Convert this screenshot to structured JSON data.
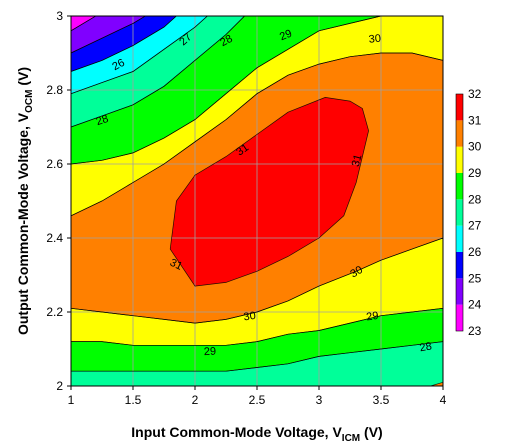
{
  "chart_data": {
    "type": "heatmap",
    "subtype": "filled-contour",
    "x_axis": {
      "label": "Input Common-Mode Voltage, V",
      "label_subscript": "ICM",
      "label_suffix": " (V)",
      "range": [
        1,
        4
      ],
      "ticks": [
        "1",
        "1.5",
        "2",
        "2.5",
        "3",
        "3.5",
        "4"
      ]
    },
    "y_axis": {
      "label": "Output Common-Mode Voltage, V",
      "label_subscript": "OCM",
      "label_suffix": " (V)",
      "range": [
        2,
        3
      ],
      "ticks": [
        "2",
        "2.2",
        "2.4",
        "2.6",
        "2.8",
        "3"
      ]
    },
    "grid": true,
    "legend_position": "right",
    "levels": [
      {
        "min": 23,
        "max": 24,
        "color": "#ff00ff"
      },
      {
        "min": 24,
        "max": 25,
        "color": "#8000ff"
      },
      {
        "min": 25,
        "max": 26,
        "color": "#0000ff"
      },
      {
        "min": 26,
        "max": 27,
        "color": "#00ffff"
      },
      {
        "min": 27,
        "max": 28,
        "color": "#00ff99"
      },
      {
        "min": 28,
        "max": 29,
        "color": "#00ff00"
      },
      {
        "min": 29,
        "max": 30,
        "color": "#ffff00"
      },
      {
        "min": 30,
        "max": 31,
        "color": "#ff8000"
      },
      {
        "min": 31,
        "max": 32,
        "color": "#ff0000"
      }
    ],
    "colorbar_ticks": [
      "23",
      "24",
      "25",
      "26",
      "27",
      "28",
      "29",
      "30",
      "31",
      "32"
    ],
    "regions": [
      {
        "level": 30,
        "points": [
          [
            1,
            2.46
          ],
          [
            1.25,
            2.5
          ],
          [
            1.5,
            2.55
          ],
          [
            1.75,
            2.6
          ],
          [
            2,
            2.66
          ],
          [
            2.25,
            2.72
          ],
          [
            2.5,
            2.79
          ],
          [
            2.75,
            2.84
          ],
          [
            3,
            2.87
          ],
          [
            3.25,
            2.89
          ],
          [
            3.5,
            2.9
          ],
          [
            3.75,
            2.9
          ],
          [
            4,
            2.88
          ],
          [
            4,
            2.4
          ],
          [
            3.75,
            2.37
          ],
          [
            3.5,
            2.34
          ],
          [
            3.3,
            2.31
          ],
          [
            3,
            2.27
          ],
          [
            2.75,
            2.23
          ],
          [
            2.5,
            2.2
          ],
          [
            2.25,
            2.18
          ],
          [
            2,
            2.17
          ],
          [
            1.75,
            2.18
          ],
          [
            1.5,
            2.19
          ],
          [
            1.25,
            2.2
          ],
          [
            1,
            2.21
          ]
        ]
      },
      {
        "level": 29,
        "points": [
          [
            1,
            2.21
          ],
          [
            1.25,
            2.2
          ],
          [
            1.5,
            2.19
          ],
          [
            1.75,
            2.18
          ],
          [
            2,
            2.17
          ],
          [
            2.25,
            2.18
          ],
          [
            2.5,
            2.2
          ],
          [
            2.75,
            2.23
          ],
          [
            3,
            2.27
          ],
          [
            3.3,
            2.31
          ],
          [
            3.5,
            2.34
          ],
          [
            3.75,
            2.37
          ],
          [
            4,
            2.4
          ],
          [
            4,
            2.21
          ],
          [
            3.75,
            2.2
          ],
          [
            3.5,
            2.19
          ],
          [
            3.25,
            2.17
          ],
          [
            3,
            2.15
          ],
          [
            2.75,
            2.14
          ],
          [
            2.5,
            2.12
          ],
          [
            2.25,
            2.11
          ],
          [
            2,
            2.11
          ],
          [
            1.75,
            2.11
          ],
          [
            1.5,
            2.11
          ],
          [
            1.25,
            2.12
          ],
          [
            1,
            2.12
          ]
        ]
      },
      {
        "level": 28,
        "points": [
          [
            1,
            2.12
          ],
          [
            1.25,
            2.12
          ],
          [
            1.5,
            2.11
          ],
          [
            1.75,
            2.11
          ],
          [
            2,
            2.11
          ],
          [
            2.25,
            2.11
          ],
          [
            2.5,
            2.12
          ],
          [
            2.75,
            2.14
          ],
          [
            3,
            2.15
          ],
          [
            3.25,
            2.17
          ],
          [
            3.5,
            2.19
          ],
          [
            3.75,
            2.2
          ],
          [
            4,
            2.21
          ],
          [
            4,
            2.12
          ],
          [
            3.75,
            2.11
          ],
          [
            3.5,
            2.1
          ],
          [
            3.25,
            2.09
          ],
          [
            3,
            2.08
          ],
          [
            2.75,
            2.06
          ],
          [
            2.5,
            2.05
          ],
          [
            2.25,
            2.04
          ],
          [
            2,
            2.04
          ],
          [
            1.75,
            2.04
          ],
          [
            1.5,
            2.04
          ],
          [
            1.25,
            2.04
          ],
          [
            1,
            2.04
          ]
        ]
      },
      {
        "level": 27,
        "points": [
          [
            1,
            2.04
          ],
          [
            1.25,
            2.04
          ],
          [
            1.5,
            2.04
          ],
          [
            1.75,
            2.04
          ],
          [
            2,
            2.04
          ],
          [
            2.25,
            2.04
          ],
          [
            2.5,
            2.05
          ],
          [
            2.75,
            2.06
          ],
          [
            3,
            2.08
          ],
          [
            3.25,
            2.09
          ],
          [
            3.5,
            2.1
          ],
          [
            3.75,
            2.11
          ],
          [
            4,
            2.12
          ],
          [
            4,
            2.01
          ],
          [
            3.9,
            2
          ],
          [
            1,
            2
          ]
        ]
      },
      {
        "level": 29,
        "points": [
          [
            1,
            2.46
          ],
          [
            1,
            2.6
          ],
          [
            1.25,
            2.61
          ],
          [
            1.5,
            2.63
          ],
          [
            1.75,
            2.67
          ],
          [
            2,
            2.72
          ],
          [
            2.25,
            2.79
          ],
          [
            2.5,
            2.86
          ],
          [
            2.75,
            2.91
          ],
          [
            3,
            2.96
          ],
          [
            3.25,
            2.98
          ],
          [
            3.5,
            3
          ],
          [
            4,
            3
          ],
          [
            4,
            2.88
          ],
          [
            3.75,
            2.9
          ],
          [
            3.5,
            2.9
          ],
          [
            3.25,
            2.89
          ],
          [
            3,
            2.87
          ],
          [
            2.75,
            2.84
          ],
          [
            2.5,
            2.79
          ],
          [
            2.25,
            2.72
          ],
          [
            2,
            2.66
          ],
          [
            1.75,
            2.6
          ],
          [
            1.5,
            2.55
          ],
          [
            1.25,
            2.5
          ]
        ]
      },
      {
        "level": 28,
        "points": [
          [
            1,
            2.6
          ],
          [
            1,
            2.7
          ],
          [
            1.25,
            2.73
          ],
          [
            1.5,
            2.76
          ],
          [
            1.75,
            2.81
          ],
          [
            2,
            2.88
          ],
          [
            2.25,
            2.95
          ],
          [
            2.4,
            3
          ],
          [
            3.5,
            3
          ],
          [
            3.25,
            2.98
          ],
          [
            3,
            2.96
          ],
          [
            2.75,
            2.91
          ],
          [
            2.5,
            2.86
          ],
          [
            2.25,
            2.79
          ],
          [
            2,
            2.72
          ],
          [
            1.75,
            2.67
          ],
          [
            1.5,
            2.63
          ],
          [
            1.25,
            2.61
          ]
        ]
      },
      {
        "level": 27,
        "points": [
          [
            1,
            2.7
          ],
          [
            1,
            2.79
          ],
          [
            1.25,
            2.82
          ],
          [
            1.5,
            2.85
          ],
          [
            1.75,
            2.91
          ],
          [
            2,
            2.97
          ],
          [
            2.1,
            3
          ],
          [
            2.4,
            3
          ],
          [
            2.25,
            2.95
          ],
          [
            2,
            2.88
          ],
          [
            1.75,
            2.81
          ],
          [
            1.5,
            2.76
          ],
          [
            1.25,
            2.73
          ]
        ]
      },
      {
        "level": 26,
        "points": [
          [
            1,
            2.79
          ],
          [
            1,
            2.85
          ],
          [
            1.25,
            2.88
          ],
          [
            1.5,
            2.92
          ],
          [
            1.75,
            2.97
          ],
          [
            1.85,
            3
          ],
          [
            2.1,
            3
          ],
          [
            2,
            2.97
          ],
          [
            1.75,
            2.91
          ],
          [
            1.5,
            2.85
          ],
          [
            1.25,
            2.82
          ]
        ]
      },
      {
        "level": 25,
        "points": [
          [
            1,
            2.85
          ],
          [
            1,
            2.9
          ],
          [
            1.25,
            2.94
          ],
          [
            1.5,
            2.98
          ],
          [
            1.6,
            3
          ],
          [
            1.85,
            3
          ],
          [
            1.75,
            2.97
          ],
          [
            1.5,
            2.92
          ],
          [
            1.25,
            2.88
          ]
        ]
      },
      {
        "level": 24,
        "points": [
          [
            1,
            2.9
          ],
          [
            1,
            2.96
          ],
          [
            1.2,
            3
          ],
          [
            1.6,
            3
          ],
          [
            1.5,
            2.98
          ],
          [
            1.25,
            2.94
          ]
        ]
      },
      {
        "level": 23,
        "points": [
          [
            1,
            2.96
          ],
          [
            1,
            3
          ],
          [
            1.2,
            3
          ]
        ]
      },
      {
        "level": 31,
        "points": [
          [
            1.8,
            2.37
          ],
          [
            2,
            2.27
          ],
          [
            2.25,
            2.28
          ],
          [
            2.5,
            2.31
          ],
          [
            2.75,
            2.35
          ],
          [
            3,
            2.4
          ],
          [
            3.2,
            2.46
          ],
          [
            3.3,
            2.55
          ],
          [
            3.4,
            2.69
          ],
          [
            3.35,
            2.75
          ],
          [
            3.25,
            2.77
          ],
          [
            3.05,
            2.78
          ],
          [
            2.75,
            2.74
          ],
          [
            2.5,
            2.68
          ],
          [
            2.25,
            2.62
          ],
          [
            2,
            2.57
          ],
          [
            1.85,
            2.5
          ]
        ]
      }
    ],
    "contour_labels": [
      {
        "text": "27",
        "x": 1.92,
        "y": 2.938,
        "angle": -42
      },
      {
        "text": "28",
        "x": 2.25,
        "y": 2.935,
        "angle": -28
      },
      {
        "text": "29",
        "x": 2.73,
        "y": 2.95,
        "angle": -22
      },
      {
        "text": "30",
        "x": 3.45,
        "y": 2.94,
        "angle": -5
      },
      {
        "text": "26",
        "x": 1.38,
        "y": 2.87,
        "angle": -28
      },
      {
        "text": "28",
        "x": 1.25,
        "y": 2.72,
        "angle": -18
      },
      {
        "text": "31",
        "x": 2.38,
        "y": 2.64,
        "angle": -35
      },
      {
        "text": "31",
        "x": 3.3,
        "y": 2.61,
        "angle": -75
      },
      {
        "text": "31",
        "x": 1.85,
        "y": 2.33,
        "angle": 25
      },
      {
        "text": "30",
        "x": 3.3,
        "y": 2.31,
        "angle": -30
      },
      {
        "text": "30",
        "x": 2.44,
        "y": 2.19,
        "angle": -8
      },
      {
        "text": "29",
        "x": 3.43,
        "y": 2.19,
        "angle": -8
      },
      {
        "text": "29",
        "x": 2.12,
        "y": 2.095,
        "angle": -3
      },
      {
        "text": "28",
        "x": 3.86,
        "y": 2.107,
        "angle": -10
      }
    ]
  }
}
